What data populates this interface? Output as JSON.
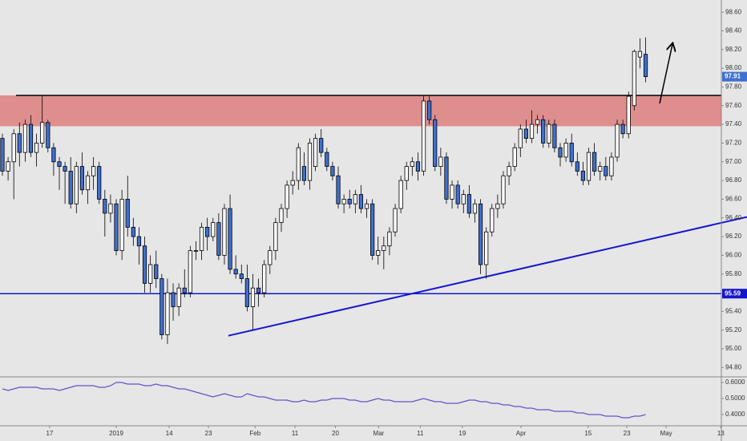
{
  "chart_data": {
    "type": "candlestick",
    "open": [
      97.25,
      96.9,
      97.0,
      97.3,
      97.1,
      97.4,
      97.1,
      97.2,
      97.42,
      97.15,
      97.0,
      96.95,
      96.9,
      96.55,
      96.95,
      96.7,
      96.85,
      96.95,
      96.6,
      96.45,
      96.55,
      96.05,
      96.6,
      96.3,
      96.2,
      96.1,
      95.7,
      95.9,
      95.75,
      95.15,
      95.6,
      95.45,
      95.65,
      95.6,
      96.05,
      96.05,
      96.3,
      96.2,
      96.35,
      96.0,
      96.5,
      95.85,
      95.8,
      95.75,
      95.45,
      95.65,
      95.6,
      95.9,
      96.05,
      96.35,
      96.5,
      96.75,
      96.8,
      96.95,
      96.8,
      96.95,
      97.25,
      97.1,
      96.95,
      96.85,
      96.55,
      96.6,
      96.55,
      96.65,
      96.5,
      96.55,
      96.0,
      96.05,
      96.1,
      96.25,
      96.5,
      96.8,
      96.95,
      97.0,
      96.9,
      97.65,
      97.45,
      96.95,
      97.05,
      96.6,
      96.75,
      96.55,
      96.65,
      96.45,
      96.55,
      95.9,
      96.25,
      96.5,
      96.55,
      96.85,
      96.95,
      97.15,
      97.35,
      97.25,
      97.4,
      97.45,
      97.2,
      97.4,
      97.15,
      97.05,
      97.2,
      97.0,
      96.9,
      96.8,
      97.1,
      96.9,
      96.95,
      96.85,
      97.05,
      97.4,
      97.3,
      97.6,
      98.12,
      98.15
    ],
    "high": [
      97.3,
      97.05,
      97.35,
      97.42,
      97.45,
      97.5,
      97.3,
      97.7,
      97.45,
      97.2,
      97.05,
      97.0,
      97.05,
      97.0,
      97.1,
      96.9,
      97.05,
      97.0,
      96.7,
      96.65,
      96.6,
      96.7,
      96.85,
      96.4,
      96.3,
      96.2,
      96.0,
      96.05,
      95.8,
      95.75,
      95.7,
      95.7,
      95.85,
      96.1,
      96.15,
      96.35,
      96.4,
      96.4,
      96.45,
      96.55,
      96.65,
      96.0,
      95.9,
      95.9,
      95.8,
      95.75,
      95.95,
      96.1,
      96.4,
      96.55,
      96.8,
      96.9,
      97.2,
      97.1,
      97.25,
      97.3,
      97.35,
      97.15,
      97.0,
      96.95,
      96.65,
      96.7,
      96.7,
      96.75,
      96.6,
      96.6,
      96.2,
      96.2,
      96.3,
      96.55,
      96.85,
      97.0,
      97.05,
      97.1,
      97.7,
      97.7,
      97.5,
      97.15,
      97.1,
      96.8,
      96.8,
      96.7,
      96.75,
      96.6,
      96.6,
      96.3,
      96.55,
      96.65,
      96.9,
      97.0,
      97.2,
      97.4,
      97.45,
      97.55,
      97.5,
      97.5,
      97.45,
      97.45,
      97.2,
      97.25,
      97.3,
      97.1,
      97.0,
      97.15,
      97.2,
      97.0,
      97.05,
      97.1,
      97.45,
      97.45,
      97.75,
      98.2,
      98.32,
      98.33
    ],
    "low": [
      96.85,
      96.8,
      96.6,
      96.95,
      97.0,
      97.05,
      96.95,
      97.15,
      97.1,
      96.85,
      96.7,
      96.55,
      96.5,
      96.45,
      96.65,
      96.55,
      96.7,
      96.55,
      96.2,
      96.35,
      96.0,
      95.95,
      96.2,
      96.1,
      95.9,
      95.6,
      95.6,
      95.65,
      95.1,
      95.05,
      95.3,
      95.35,
      95.55,
      95.55,
      95.95,
      95.95,
      96.05,
      96.15,
      95.95,
      95.9,
      95.8,
      95.75,
      95.7,
      95.4,
      95.2,
      95.45,
      95.55,
      95.8,
      95.95,
      96.25,
      96.4,
      96.65,
      96.7,
      96.75,
      96.7,
      96.9,
      97.05,
      96.9,
      96.8,
      96.5,
      96.45,
      96.5,
      96.45,
      96.45,
      96.4,
      95.95,
      95.9,
      95.85,
      96.0,
      96.2,
      96.45,
      96.7,
      96.85,
      96.8,
      96.85,
      97.4,
      96.9,
      96.85,
      96.55,
      96.5,
      96.5,
      96.45,
      96.4,
      96.35,
      95.8,
      95.75,
      96.2,
      96.4,
      96.5,
      96.75,
      96.9,
      97.05,
      97.2,
      97.2,
      97.3,
      97.15,
      97.15,
      97.1,
      96.95,
      97.0,
      96.95,
      96.85,
      96.75,
      96.75,
      96.85,
      96.8,
      96.8,
      96.8,
      97.0,
      97.25,
      97.25,
      97.55,
      98.0,
      97.85
    ],
    "close": [
      96.9,
      97.0,
      97.3,
      97.1,
      97.4,
      97.1,
      97.2,
      97.42,
      97.15,
      97.0,
      96.95,
      96.9,
      96.55,
      96.95,
      96.7,
      96.85,
      96.95,
      96.6,
      96.45,
      96.55,
      96.05,
      96.6,
      96.3,
      96.2,
      96.1,
      95.7,
      95.9,
      95.75,
      95.15,
      95.6,
      95.45,
      95.65,
      95.6,
      96.05,
      96.05,
      96.3,
      96.2,
      96.35,
      96.0,
      96.5,
      95.85,
      95.8,
      95.75,
      95.45,
      95.65,
      95.6,
      95.9,
      96.05,
      96.35,
      96.5,
      96.75,
      96.8,
      97.15,
      96.8,
      97.2,
      97.25,
      97.1,
      96.95,
      96.85,
      96.55,
      96.6,
      96.55,
      96.65,
      96.5,
      96.55,
      96.0,
      96.05,
      96.1,
      96.25,
      96.5,
      96.8,
      96.95,
      97.0,
      96.9,
      97.65,
      97.45,
      96.95,
      97.05,
      96.6,
      96.75,
      96.55,
      96.65,
      96.45,
      96.55,
      95.9,
      96.25,
      96.5,
      96.55,
      96.85,
      96.95,
      97.15,
      97.35,
      97.25,
      97.4,
      97.45,
      97.2,
      97.4,
      97.15,
      97.05,
      97.2,
      97.0,
      96.9,
      96.8,
      97.1,
      96.9,
      96.95,
      96.85,
      97.05,
      97.4,
      97.3,
      97.7,
      98.18,
      98.18,
      97.91
    ],
    "up_color": "#ffffff",
    "down_color": "#3f6fcf",
    "xlim": [
      -0.42,
      126.3
    ],
    "xticks": [
      {
        "value": 8.3,
        "label": "17"
      },
      {
        "value": 20,
        "label": "2019"
      },
      {
        "value": 29.3,
        "label": "14"
      },
      {
        "value": 36.2,
        "label": "23"
      },
      {
        "value": 44.4,
        "label": "Feb"
      },
      {
        "value": 51.4,
        "label": "11"
      },
      {
        "value": 58.5,
        "label": "20"
      },
      {
        "value": 66.1,
        "label": "Mar"
      },
      {
        "value": 73.4,
        "label": "11"
      },
      {
        "value": 80.8,
        "label": "19"
      },
      {
        "value": 91.1,
        "label": "Apr"
      },
      {
        "value": 102.9,
        "label": "15"
      },
      {
        "value": 109.7,
        "label": "23"
      },
      {
        "value": 116.6,
        "label": "May"
      },
      {
        "value": 126.2,
        "label": "13"
      }
    ],
    "ylim": [
      94.7,
      98.73
    ],
    "yticks": [
      {
        "value": 98.6,
        "label": "98.60"
      },
      {
        "value": 98.4,
        "label": "98.40"
      },
      {
        "value": 98.2,
        "label": "98.20"
      },
      {
        "value": 98.0,
        "label": "98.00"
      },
      {
        "value": 97.8,
        "label": "97.80"
      },
      {
        "value": 97.6,
        "label": "97.60"
      },
      {
        "value": 97.4,
        "label": "97.40"
      },
      {
        "value": 97.2,
        "label": "97.20"
      },
      {
        "value": 97.0,
        "label": "97.00"
      },
      {
        "value": 96.8,
        "label": "96.80"
      },
      {
        "value": 96.6,
        "label": "96.60"
      },
      {
        "value": 96.4,
        "label": "96.40"
      },
      {
        "value": 96.2,
        "label": "96.20"
      },
      {
        "value": 96.0,
        "label": "96.00"
      },
      {
        "value": 95.8,
        "label": "95.80"
      },
      {
        "value": 95.4,
        "label": "95.40"
      },
      {
        "value": 95.2,
        "label": "95.20"
      },
      {
        "value": 95.0,
        "label": "95.00"
      },
      {
        "value": 94.8,
        "label": "94.80"
      }
    ],
    "zone": {
      "low": 97.38,
      "high": 97.71,
      "color": "#df8e8e"
    },
    "resistance": {
      "value": 97.71,
      "x_start": 2.4,
      "color": "#000000"
    },
    "support": {
      "value": 95.59,
      "label": "95.59",
      "color": "#1515d0"
    },
    "last_price": {
      "value": 97.91,
      "label": "97.91"
    },
    "trendline": {
      "x": [
        39.7,
        130.8
      ],
      "y": [
        95.14,
        96.41
      ],
      "color": "#1515d0"
    },
    "indicator": {
      "color": "#6a4fc9",
      "ylim": [
        0.335,
        0.635
      ],
      "yticks": [
        {
          "value": 0.6,
          "label": "0.6000"
        },
        {
          "value": 0.5,
          "label": "0.5000"
        },
        {
          "value": 0.4,
          "label": "0.4000"
        }
      ],
      "values": [
        0.56,
        0.55,
        0.56,
        0.57,
        0.57,
        0.57,
        0.57,
        0.56,
        0.56,
        0.56,
        0.55,
        0.56,
        0.57,
        0.58,
        0.58,
        0.58,
        0.58,
        0.57,
        0.57,
        0.58,
        0.6,
        0.6,
        0.59,
        0.59,
        0.59,
        0.58,
        0.58,
        0.59,
        0.58,
        0.58,
        0.57,
        0.56,
        0.56,
        0.55,
        0.54,
        0.53,
        0.52,
        0.51,
        0.52,
        0.53,
        0.52,
        0.51,
        0.51,
        0.53,
        0.52,
        0.51,
        0.51,
        0.5,
        0.49,
        0.49,
        0.49,
        0.48,
        0.48,
        0.49,
        0.48,
        0.48,
        0.49,
        0.49,
        0.5,
        0.5,
        0.5,
        0.49,
        0.49,
        0.48,
        0.48,
        0.49,
        0.5,
        0.49,
        0.49,
        0.48,
        0.48,
        0.48,
        0.48,
        0.49,
        0.5,
        0.49,
        0.48,
        0.48,
        0.47,
        0.47,
        0.47,
        0.48,
        0.49,
        0.49,
        0.48,
        0.48,
        0.47,
        0.47,
        0.46,
        0.46,
        0.45,
        0.45,
        0.44,
        0.44,
        0.43,
        0.43,
        0.43,
        0.42,
        0.42,
        0.42,
        0.42,
        0.41,
        0.41,
        0.4,
        0.4,
        0.4,
        0.39,
        0.39,
        0.39,
        0.38,
        0.38,
        0.39,
        0.39,
        0.4
      ]
    }
  }
}
